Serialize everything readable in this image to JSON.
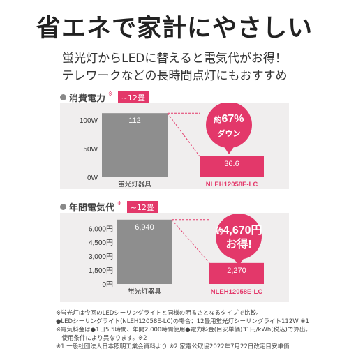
{
  "headline": "省エネで家計にやさしい",
  "subline1": "蛍光灯からLEDに替えると電気代がお得！",
  "subline2": "テレワークなどの長時間点灯にもおすすめ",
  "accent_color": "#e3386a",
  "gray_bar_color": "#8e8e8e",
  "chart_data": [
    {
      "type": "bar",
      "title": "消費電力",
      "title_mark": "※",
      "badge": "~12畳",
      "categories": [
        "蛍光灯器具",
        "NLEH12058E-LC"
      ],
      "values": [
        112,
        36.6
      ],
      "value_labels": [
        "112",
        "36.6"
      ],
      "bar_colors": [
        "#8e8e8e",
        "#e3386a"
      ],
      "y_ticks": [
        0,
        50,
        100
      ],
      "y_tick_labels": [
        "0W",
        "50W",
        "100W"
      ],
      "ylim": [
        0,
        122
      ],
      "callout_lines": [
        [
          {
            "t": "約",
            "big": false
          },
          {
            "t": "67%",
            "big": true
          }
        ],
        [
          {
            "t": "ダウン",
            "big": false
          }
        ]
      ]
    },
    {
      "type": "bar",
      "title": "年間電気代",
      "title_mark": "※",
      "badge": "~12畳",
      "categories": [
        "蛍光灯器具",
        "NLEH12058E-LC"
      ],
      "values": [
        6940,
        2270
      ],
      "value_labels": [
        "6,940",
        "2,270"
      ],
      "bar_colors": [
        "#8e8e8e",
        "#e3386a"
      ],
      "y_ticks": [
        0,
        1500,
        3000,
        4500,
        6000
      ],
      "y_tick_labels": [
        "0円",
        "1,500円",
        "3,000円",
        "4,500円",
        "6,000円"
      ],
      "ylim": [
        0,
        7000
      ],
      "callout_lines": [
        [
          {
            "t": "約",
            "big": false
          },
          {
            "t": "4,670円",
            "big": true
          }
        ],
        [
          {
            "t": "お得!",
            "big": true
          }
        ]
      ]
    }
  ],
  "footnotes": [
    "※蛍光灯は今回のLEDシーリングライトと同様の明るさとなるタイプで比較。",
    "●LEDシーリングライト(NLEH12058E-LC)の場合：12畳用蛍光灯シーリングライト112W ※1",
    "※電気料金は●1日5.5時間、年間2,000時間使用●電力料金(目安単価)31円/kWh(税込)で算出。",
    "　使用条件により異なります。※2",
    "※1 一般社団法人日本照明工業会資料より ※2 家電公取協2022年7月22日改定目安単価"
  ]
}
